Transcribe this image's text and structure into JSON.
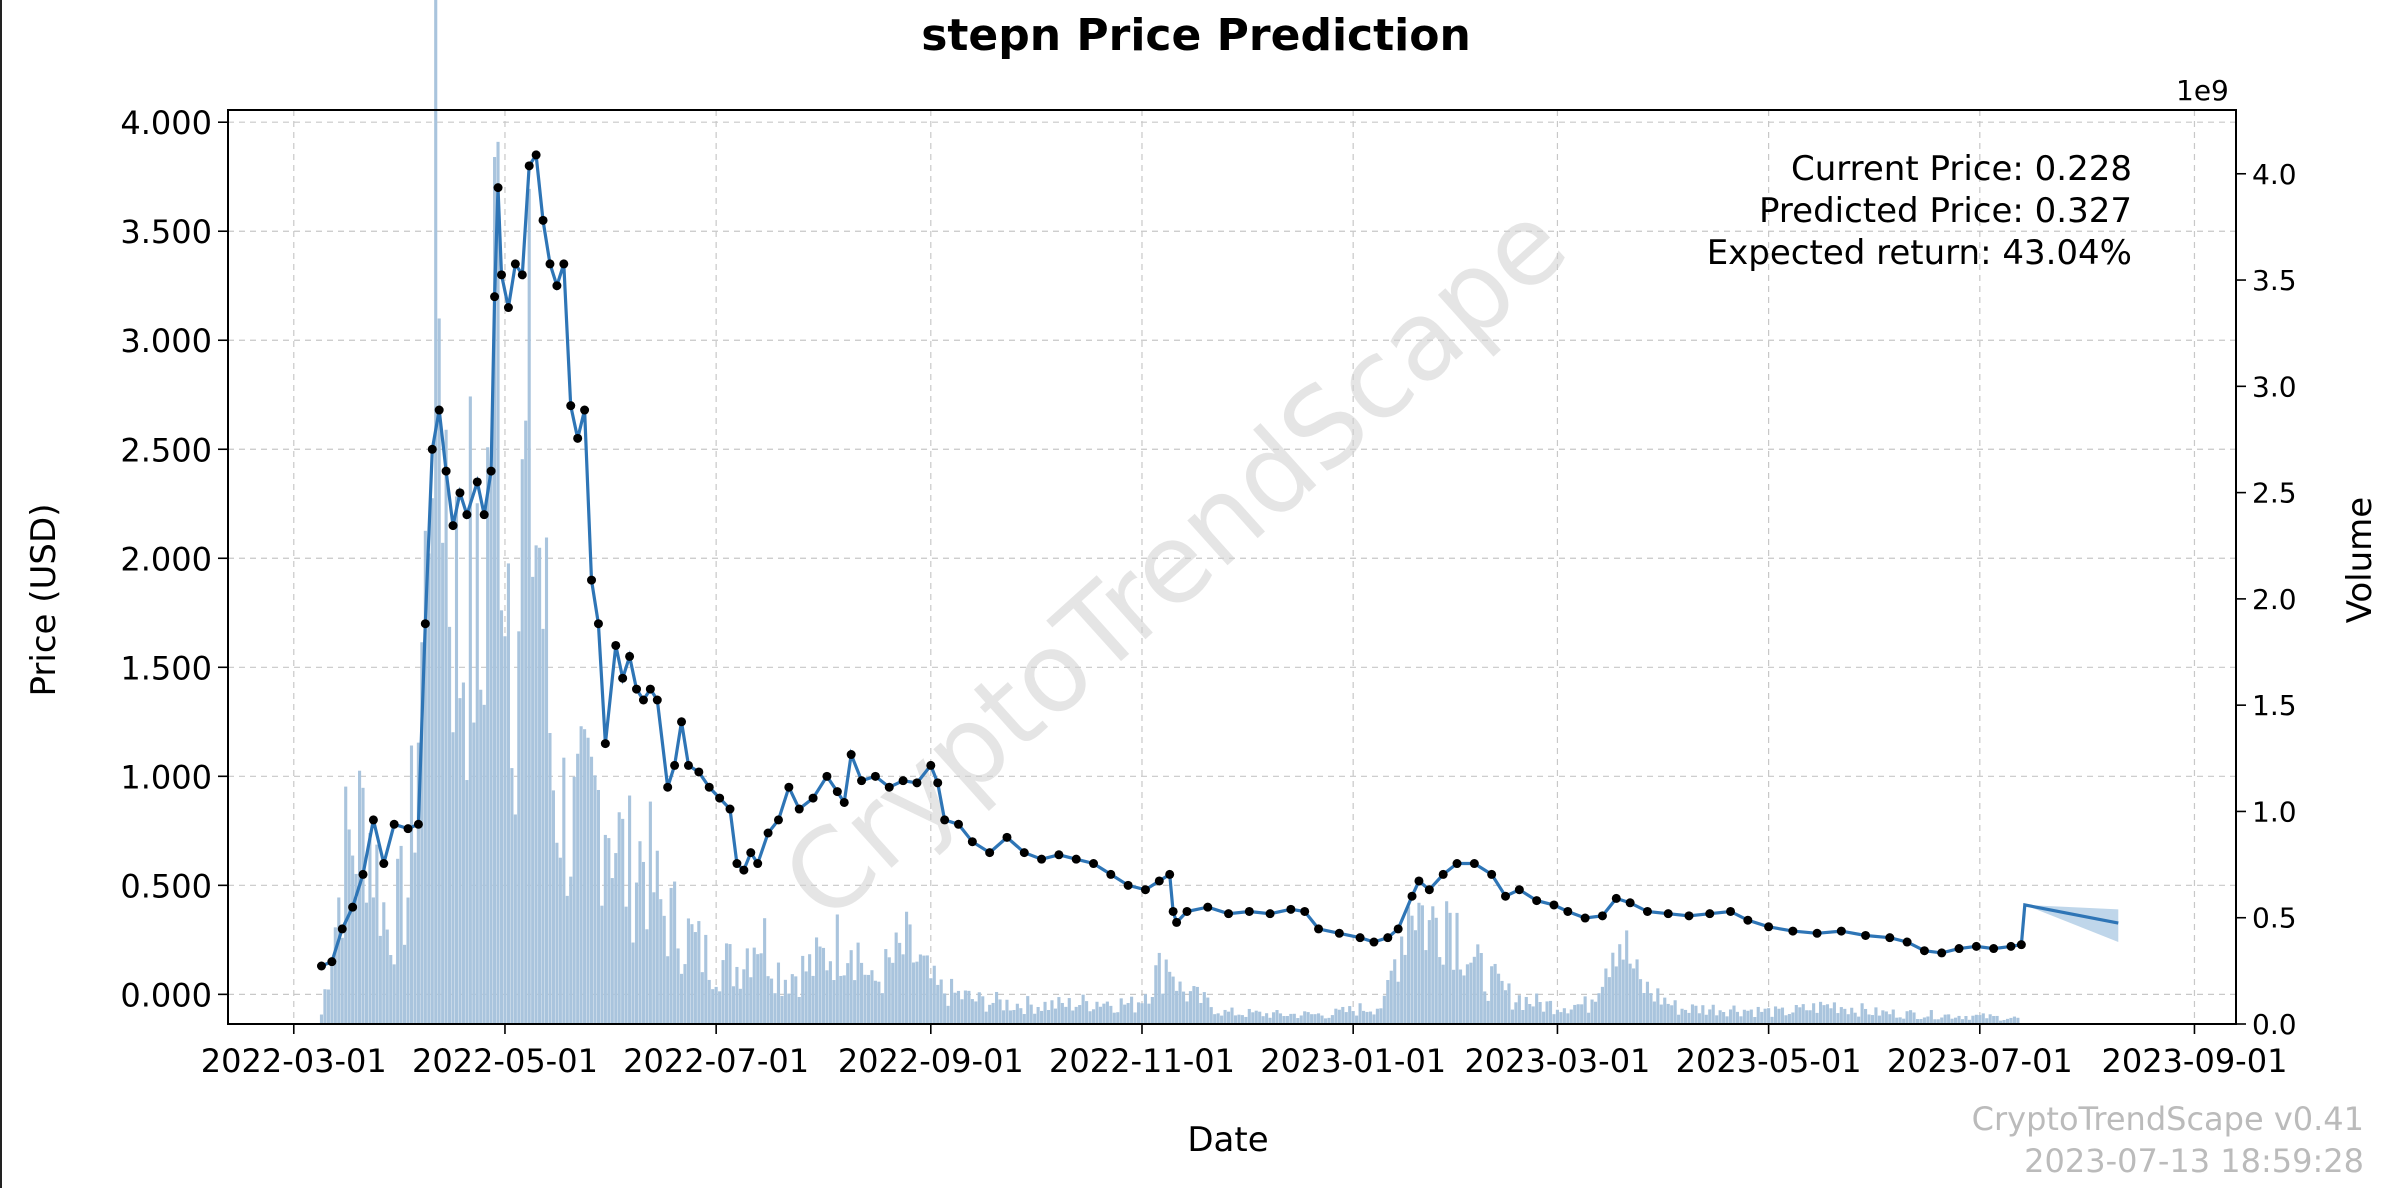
{
  "header": {
    "title": "stepn Price Prediction"
  },
  "annotations": {
    "current": "Current Price: 0.228",
    "predicted": "Predicted Price: 0.327",
    "expected": "Expected return: 43.04%"
  },
  "axes": {
    "x_label": "Date",
    "y_left_label": "Price (USD)",
    "y_right_label": "Volume",
    "y_right_scale": "1e9"
  },
  "watermark": {
    "text": "CryptoTrendScape",
    "version": "CryptoTrendScape v0.41",
    "timestamp": "2023-07-13 18:59:28"
  },
  "colors": {
    "price_line": "#2e75b6",
    "points": "#000000",
    "volume_bars": "#a9c4dd",
    "forecast_band": "#a9c8e3",
    "grid": "#c8c8c8",
    "watermark": "#d0d0d0"
  },
  "chart_data": {
    "type": "line",
    "x_type": "date",
    "xlim": [
      "2022-02-10",
      "2023-09-13"
    ],
    "ylim_price": [
      -0.136,
      4.056
    ],
    "ylim_volume": [
      0,
      4.3
    ],
    "grid": true,
    "x_ticks": [
      "2022-03-01",
      "2022-05-01",
      "2022-07-01",
      "2022-09-01",
      "2022-11-01",
      "2023-01-01",
      "2023-03-01",
      "2023-05-01",
      "2023-07-01",
      "2023-09-01"
    ],
    "y_ticks_price": [
      "0.000",
      "0.500",
      "1.000",
      "1.500",
      "2.000",
      "2.500",
      "3.000",
      "3.500",
      "4.000"
    ],
    "y_ticks_volume": [
      "0.0",
      "0.5",
      "1.0",
      "1.5",
      "2.0",
      "2.5",
      "3.0",
      "3.5",
      "4.0"
    ],
    "series": [
      {
        "kind": "price",
        "points": [
          [
            "2022-03-09",
            0.13
          ],
          [
            "2022-03-12",
            0.15
          ],
          [
            "2022-03-15",
            0.3
          ],
          [
            "2022-03-18",
            0.4
          ],
          [
            "2022-03-21",
            0.55
          ],
          [
            "2022-03-24",
            0.8
          ],
          [
            "2022-03-27",
            0.6
          ],
          [
            "2022-03-30",
            0.78
          ],
          [
            "2022-04-03",
            0.76
          ],
          [
            "2022-04-06",
            0.78
          ],
          [
            "2022-04-08",
            1.7
          ],
          [
            "2022-04-10",
            2.5
          ],
          [
            "2022-04-12",
            2.68
          ],
          [
            "2022-04-14",
            2.4
          ],
          [
            "2022-04-16",
            2.15
          ],
          [
            "2022-04-18",
            2.3
          ],
          [
            "2022-04-20",
            2.2
          ],
          [
            "2022-04-23",
            2.35
          ],
          [
            "2022-04-25",
            2.2
          ],
          [
            "2022-04-27",
            2.4
          ],
          [
            "2022-04-28",
            3.2
          ],
          [
            "2022-04-29",
            3.7
          ],
          [
            "2022-04-30",
            3.3
          ],
          [
            "2022-05-02",
            3.15
          ],
          [
            "2022-05-04",
            3.35
          ],
          [
            "2022-05-06",
            3.3
          ],
          [
            "2022-05-08",
            3.8
          ],
          [
            "2022-05-10",
            3.85
          ],
          [
            "2022-05-12",
            3.55
          ],
          [
            "2022-05-14",
            3.35
          ],
          [
            "2022-05-16",
            3.25
          ],
          [
            "2022-05-18",
            3.35
          ],
          [
            "2022-05-20",
            2.7
          ],
          [
            "2022-05-22",
            2.55
          ],
          [
            "2022-05-24",
            2.68
          ],
          [
            "2022-05-26",
            1.9
          ],
          [
            "2022-05-28",
            1.7
          ],
          [
            "2022-05-30",
            1.15
          ],
          [
            "2022-06-02",
            1.6
          ],
          [
            "2022-06-04",
            1.45
          ],
          [
            "2022-06-06",
            1.55
          ],
          [
            "2022-06-08",
            1.4
          ],
          [
            "2022-06-10",
            1.35
          ],
          [
            "2022-06-12",
            1.4
          ],
          [
            "2022-06-14",
            1.35
          ],
          [
            "2022-06-17",
            0.95
          ],
          [
            "2022-06-19",
            1.05
          ],
          [
            "2022-06-21",
            1.25
          ],
          [
            "2022-06-23",
            1.05
          ],
          [
            "2022-06-26",
            1.02
          ],
          [
            "2022-06-29",
            0.95
          ],
          [
            "2022-07-02",
            0.9
          ],
          [
            "2022-07-05",
            0.85
          ],
          [
            "2022-07-07",
            0.6
          ],
          [
            "2022-07-09",
            0.57
          ],
          [
            "2022-07-11",
            0.65
          ],
          [
            "2022-07-13",
            0.6
          ],
          [
            "2022-07-16",
            0.74
          ],
          [
            "2022-07-19",
            0.8
          ],
          [
            "2022-07-22",
            0.95
          ],
          [
            "2022-07-25",
            0.85
          ],
          [
            "2022-07-29",
            0.9
          ],
          [
            "2022-08-02",
            1.0
          ],
          [
            "2022-08-05",
            0.93
          ],
          [
            "2022-08-07",
            0.88
          ],
          [
            "2022-08-09",
            1.1
          ],
          [
            "2022-08-12",
            0.98
          ],
          [
            "2022-08-16",
            1.0
          ],
          [
            "2022-08-20",
            0.95
          ],
          [
            "2022-08-24",
            0.98
          ],
          [
            "2022-08-28",
            0.97
          ],
          [
            "2022-09-01",
            1.05
          ],
          [
            "2022-09-03",
            0.97
          ],
          [
            "2022-09-05",
            0.8
          ],
          [
            "2022-09-09",
            0.78
          ],
          [
            "2022-09-13",
            0.7
          ],
          [
            "2022-09-18",
            0.65
          ],
          [
            "2022-09-23",
            0.72
          ],
          [
            "2022-09-28",
            0.65
          ],
          [
            "2022-10-03",
            0.62
          ],
          [
            "2022-10-08",
            0.64
          ],
          [
            "2022-10-13",
            0.62
          ],
          [
            "2022-10-18",
            0.6
          ],
          [
            "2022-10-23",
            0.55
          ],
          [
            "2022-10-28",
            0.5
          ],
          [
            "2022-11-02",
            0.48
          ],
          [
            "2022-11-06",
            0.52
          ],
          [
            "2022-11-09",
            0.55
          ],
          [
            "2022-11-10",
            0.38
          ],
          [
            "2022-11-11",
            0.33
          ],
          [
            "2022-11-14",
            0.38
          ],
          [
            "2022-11-20",
            0.4
          ],
          [
            "2022-11-26",
            0.37
          ],
          [
            "2022-12-02",
            0.38
          ],
          [
            "2022-12-08",
            0.37
          ],
          [
            "2022-12-14",
            0.39
          ],
          [
            "2022-12-18",
            0.38
          ],
          [
            "2022-12-22",
            0.3
          ],
          [
            "2022-12-28",
            0.28
          ],
          [
            "2023-01-03",
            0.26
          ],
          [
            "2023-01-07",
            0.24
          ],
          [
            "2023-01-11",
            0.26
          ],
          [
            "2023-01-14",
            0.3
          ],
          [
            "2023-01-18",
            0.45
          ],
          [
            "2023-01-20",
            0.52
          ],
          [
            "2023-01-23",
            0.48
          ],
          [
            "2023-01-27",
            0.55
          ],
          [
            "2023-01-31",
            0.6
          ],
          [
            "2023-02-05",
            0.6
          ],
          [
            "2023-02-10",
            0.55
          ],
          [
            "2023-02-14",
            0.45
          ],
          [
            "2023-02-18",
            0.48
          ],
          [
            "2023-02-23",
            0.43
          ],
          [
            "2023-02-28",
            0.41
          ],
          [
            "2023-03-04",
            0.38
          ],
          [
            "2023-03-09",
            0.35
          ],
          [
            "2023-03-14",
            0.36
          ],
          [
            "2023-03-18",
            0.44
          ],
          [
            "2023-03-22",
            0.42
          ],
          [
            "2023-03-27",
            0.38
          ],
          [
            "2023-04-02",
            0.37
          ],
          [
            "2023-04-08",
            0.36
          ],
          [
            "2023-04-14",
            0.37
          ],
          [
            "2023-04-20",
            0.38
          ],
          [
            "2023-04-25",
            0.34
          ],
          [
            "2023-05-01",
            0.31
          ],
          [
            "2023-05-08",
            0.29
          ],
          [
            "2023-05-15",
            0.28
          ],
          [
            "2023-05-22",
            0.29
          ],
          [
            "2023-05-29",
            0.27
          ],
          [
            "2023-06-05",
            0.26
          ],
          [
            "2023-06-10",
            0.24
          ],
          [
            "2023-06-15",
            0.2
          ],
          [
            "2023-06-20",
            0.19
          ],
          [
            "2023-06-25",
            0.21
          ],
          [
            "2023-06-30",
            0.22
          ],
          [
            "2023-07-05",
            0.21
          ],
          [
            "2023-07-10",
            0.22
          ],
          [
            "2023-07-13",
            0.228
          ]
        ]
      },
      {
        "kind": "forecast",
        "points": [
          [
            "2023-07-13",
            0.228
          ],
          [
            "2023-07-14",
            0.41
          ],
          [
            "2023-08-10",
            0.327
          ]
        ],
        "band_upper": [
          [
            "2023-07-14",
            0.41
          ],
          [
            "2023-08-10",
            0.39
          ]
        ],
        "band_lower": [
          [
            "2023-07-14",
            0.41
          ],
          [
            "2023-08-10",
            0.24
          ]
        ]
      }
    ],
    "volume_bars": [
      [
        "2022-03-09",
        0.05
      ],
      [
        "2022-03-16",
        0.9
      ],
      [
        "2022-03-22",
        1.1
      ],
      [
        "2022-03-28",
        0.5
      ],
      [
        "2022-04-03",
        0.7
      ],
      [
        "2022-04-08",
        2.2
      ],
      [
        "2022-04-10",
        4.1
      ],
      [
        "2022-04-12",
        3.9
      ],
      [
        "2022-04-15",
        2.5
      ],
      [
        "2022-04-18",
        2.0
      ],
      [
        "2022-04-21",
        2.3
      ],
      [
        "2022-04-24",
        1.8
      ],
      [
        "2022-04-27",
        3.2
      ],
      [
        "2022-04-29",
        4.0
      ],
      [
        "2022-05-01",
        2.8
      ],
      [
        "2022-05-04",
        2.0
      ],
      [
        "2022-05-08",
        3.0
      ],
      [
        "2022-05-11",
        2.5
      ],
      [
        "2022-05-15",
        1.3
      ],
      [
        "2022-05-20",
        1.0
      ],
      [
        "2022-05-25",
        1.1
      ],
      [
        "2022-05-30",
        1.2
      ],
      [
        "2022-06-05",
        0.8
      ],
      [
        "2022-06-10",
        0.9
      ],
      [
        "2022-06-15",
        0.6
      ],
      [
        "2022-06-21",
        0.5
      ],
      [
        "2022-06-28",
        0.35
      ],
      [
        "2022-07-07",
        0.3
      ],
      [
        "2022-07-13",
        0.5
      ],
      [
        "2022-07-20",
        0.25
      ],
      [
        "2022-07-29",
        0.3
      ],
      [
        "2022-08-09",
        0.48
      ],
      [
        "2022-08-15",
        0.2
      ],
      [
        "2022-08-25",
        0.4
      ],
      [
        "2022-09-03",
        0.18
      ],
      [
        "2022-09-15",
        0.12
      ],
      [
        "2022-09-28",
        0.1
      ],
      [
        "2022-10-10",
        0.1
      ],
      [
        "2022-10-20",
        0.12
      ],
      [
        "2022-10-30",
        0.1
      ],
      [
        "2022-11-09",
        0.35
      ],
      [
        "2022-11-12",
        0.18
      ],
      [
        "2022-11-25",
        0.06
      ],
      [
        "2022-12-10",
        0.05
      ],
      [
        "2022-12-25",
        0.05
      ],
      [
        "2023-01-10",
        0.1
      ],
      [
        "2023-01-18",
        0.7
      ],
      [
        "2023-01-23",
        0.5
      ],
      [
        "2023-01-28",
        0.65
      ],
      [
        "2023-02-05",
        0.3
      ],
      [
        "2023-02-15",
        0.15
      ],
      [
        "2023-02-25",
        0.1
      ],
      [
        "2023-03-10",
        0.1
      ],
      [
        "2023-03-18",
        0.5
      ],
      [
        "2023-03-25",
        0.2
      ],
      [
        "2023-04-05",
        0.08
      ],
      [
        "2023-04-20",
        0.08
      ],
      [
        "2023-05-05",
        0.06
      ],
      [
        "2023-05-20",
        0.1
      ],
      [
        "2023-06-01",
        0.06
      ],
      [
        "2023-06-15",
        0.05
      ],
      [
        "2023-06-30",
        0.04
      ],
      [
        "2023-07-12",
        0.03
      ]
    ]
  }
}
